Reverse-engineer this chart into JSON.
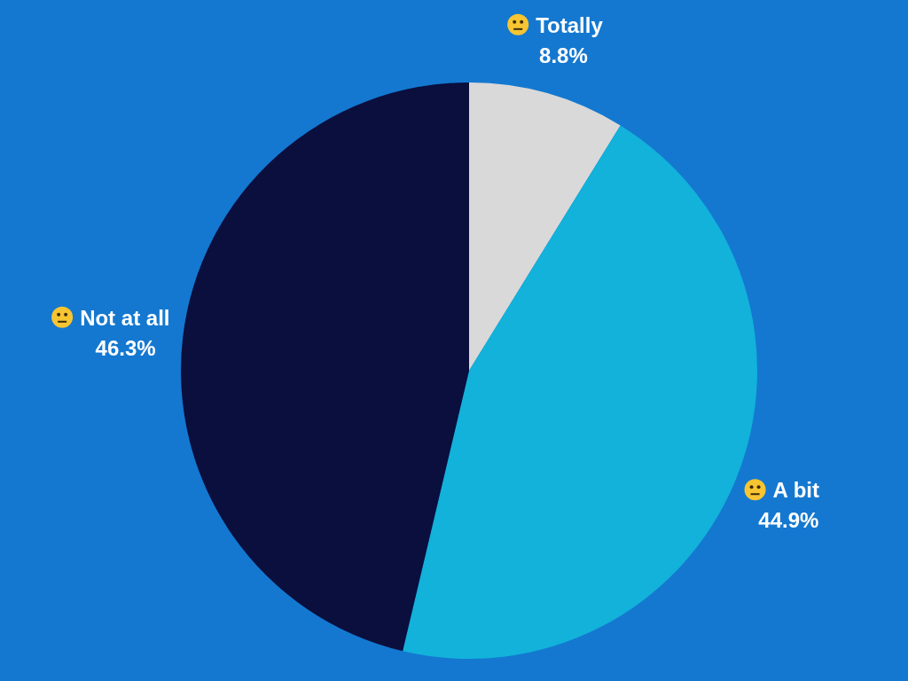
{
  "chart_data": {
    "type": "pie",
    "categories": [
      "Totally",
      "A bit",
      "Not at all"
    ],
    "values": [
      8.8,
      44.9,
      46.3
    ],
    "colors": [
      "#d9d9d9",
      "#12b2da",
      "#0a0f3e"
    ],
    "value_labels": [
      "8.8%",
      "44.9%",
      "46.3%"
    ]
  }
}
